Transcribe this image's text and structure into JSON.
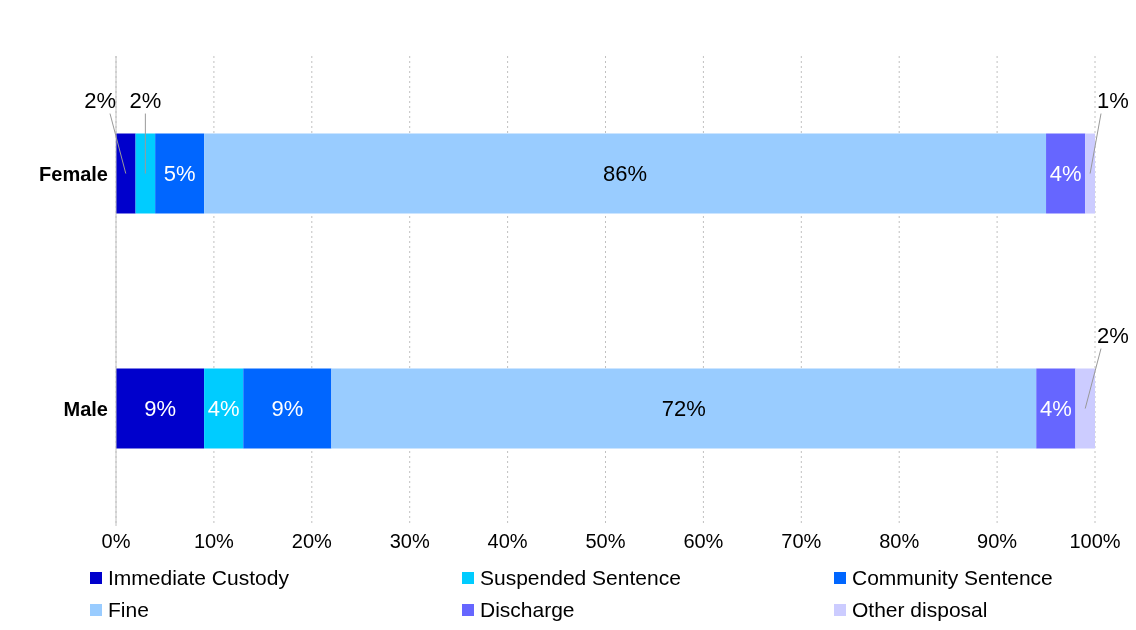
{
  "chart_data": {
    "type": "bar",
    "orientation": "horizontal",
    "stacked": true,
    "categories": [
      "Female",
      "Male"
    ],
    "series": [
      {
        "name": "Immediate Custody",
        "color": "#0000cc",
        "values": [
          2,
          9
        ],
        "value_labels": [
          "2%",
          "9%"
        ]
      },
      {
        "name": "Suspended Sentence",
        "color": "#00ccff",
        "values": [
          2,
          4
        ],
        "value_labels": [
          "2%",
          "4%"
        ]
      },
      {
        "name": "Community Sentence",
        "color": "#0066ff",
        "values": [
          5,
          9
        ],
        "value_labels": [
          "5%",
          "9%"
        ]
      },
      {
        "name": "Fine",
        "color": "#99ccff",
        "values": [
          86,
          72
        ],
        "value_labels": [
          "86%",
          "72%"
        ]
      },
      {
        "name": "Discharge",
        "color": "#6666ff",
        "values": [
          4,
          4
        ],
        "value_labels": [
          "4%",
          "4%"
        ]
      },
      {
        "name": "Other disposal",
        "color": "#ccccff",
        "values": [
          1,
          2
        ],
        "value_labels": [
          "1%",
          "2%"
        ]
      }
    ],
    "xlim": [
      0,
      100
    ],
    "xticks": [
      {
        "value": 0,
        "label": "0%"
      },
      {
        "value": 10,
        "label": "10%"
      },
      {
        "value": 20,
        "label": "20%"
      },
      {
        "value": 30,
        "label": "30%"
      },
      {
        "value": 40,
        "label": "40%"
      },
      {
        "value": 50,
        "label": "50%"
      },
      {
        "value": 60,
        "label": "60%"
      },
      {
        "value": 70,
        "label": "70%"
      },
      {
        "value": 80,
        "label": "80%"
      },
      {
        "value": 90,
        "label": "90%"
      },
      {
        "value": 100,
        "label": "100%"
      }
    ],
    "grid": "x",
    "legend": "bottom"
  }
}
